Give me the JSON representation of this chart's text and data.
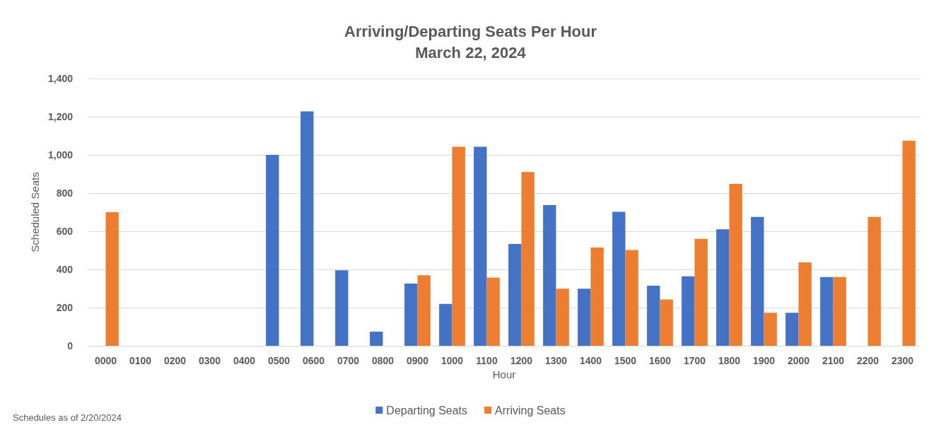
{
  "chart_data": {
    "type": "bar",
    "title": "Arriving/Departing Seats Per Hour",
    "subtitle": "March 22, 2024",
    "xlabel": "Hour",
    "ylabel": "Scheduled Seats",
    "categories": [
      "0000",
      "0100",
      "0200",
      "0300",
      "0400",
      "0500",
      "0600",
      "0700",
      "0800",
      "0900",
      "1000",
      "1100",
      "1200",
      "1300",
      "1400",
      "1500",
      "1600",
      "1700",
      "1800",
      "1900",
      "2000",
      "2100",
      "2200",
      "2300"
    ],
    "series": [
      {
        "name": "Departing Seats",
        "color": "#4472c4",
        "values": [
          null,
          null,
          null,
          null,
          null,
          1000,
          1228,
          395,
          74,
          326,
          219,
          1043,
          533,
          737,
          299,
          702,
          315,
          364,
          610,
          675,
          173,
          360,
          null,
          null
        ]
      },
      {
        "name": "Arriving Seats",
        "color": "#ed7d31",
        "values": [
          700,
          null,
          null,
          null,
          null,
          null,
          null,
          null,
          null,
          369,
          1043,
          357,
          910,
          299,
          515,
          502,
          243,
          560,
          848,
          173,
          437,
          360,
          675,
          1074
        ]
      }
    ],
    "ylim": [
      0,
      1400
    ],
    "yticks": [
      0,
      200,
      400,
      600,
      800,
      {
        "value": 1000,
        "label": "1,000"
      },
      {
        "value": 1200,
        "label": "1,200"
      },
      {
        "value": 1400,
        "label": "1,400"
      }
    ],
    "grid": "y",
    "legend": "bottom",
    "annotations": [
      "Schedules as of 2/20/2024"
    ]
  }
}
